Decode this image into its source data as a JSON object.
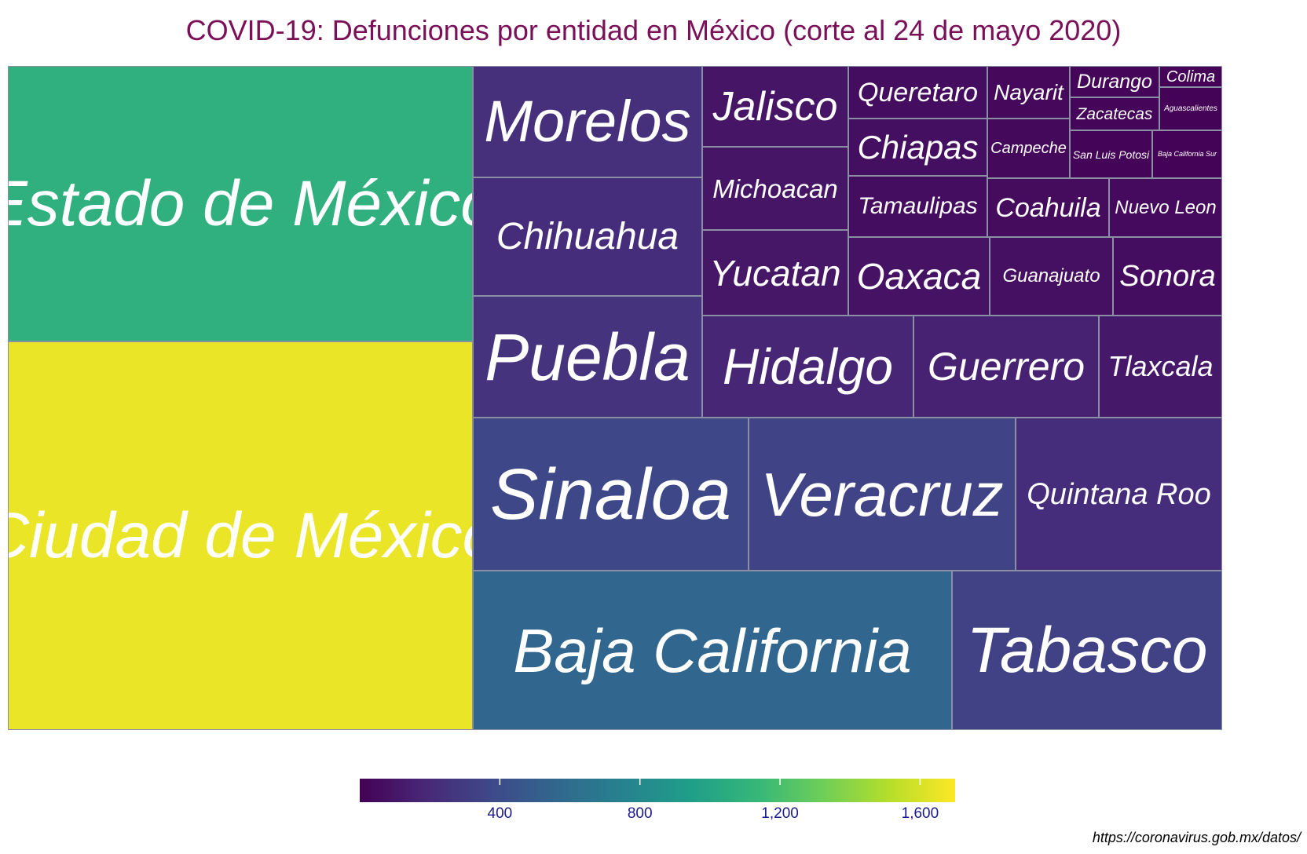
{
  "title": "COVID-19: Defunciones por entidad en México (corte al 24 de mayo 2020)",
  "source": "https://coronavirus.gob.mx/datos/",
  "colorscale": [
    "#440154",
    "#482878",
    "#3e4989",
    "#31688e",
    "#26828e",
    "#1f9e89",
    "#35b779",
    "#6ece58",
    "#b5de2b",
    "#fde725"
  ],
  "chart_data": {
    "type": "treemap",
    "title": "COVID-19: Defunciones por entidad en México (corte al 24 de mayo 2020)",
    "value_range": [
      0,
      1700
    ],
    "legend": {
      "ticks": [
        400,
        800,
        1200,
        1600
      ],
      "tick_labels": [
        "400",
        "800",
        "1,200",
        "1,600"
      ],
      "placement": "bottom"
    },
    "items": [
      {
        "name": "Ciudad de México",
        "value": 1650
      },
      {
        "name": "Estado de México",
        "value": 1080
      },
      {
        "name": "Baja California",
        "value": 560
      },
      {
        "name": "Tabasco",
        "value": 330
      },
      {
        "name": "Sinaloa",
        "value": 370
      },
      {
        "name": "Veracruz",
        "value": 345
      },
      {
        "name": "Quintana Roo",
        "value": 220
      },
      {
        "name": "Puebla",
        "value": 250
      },
      {
        "name": "Morelos",
        "value": 235
      },
      {
        "name": "Chihuahua",
        "value": 220
      },
      {
        "name": "Hidalgo",
        "value": 180
      },
      {
        "name": "Guerrero",
        "value": 160
      },
      {
        "name": "Tlaxcala",
        "value": 110
      },
      {
        "name": "Jalisco",
        "value": 95
      },
      {
        "name": "Michoacan",
        "value": 95
      },
      {
        "name": "Yucatan",
        "value": 100
      },
      {
        "name": "Oaxaca",
        "value": 85
      },
      {
        "name": "Guanajuato",
        "value": 75
      },
      {
        "name": "Sonora",
        "value": 60
      },
      {
        "name": "Queretaro",
        "value": 60
      },
      {
        "name": "Chiapas",
        "value": 70
      },
      {
        "name": "Tamaulipas",
        "value": 60
      },
      {
        "name": "Coahuila",
        "value": 55
      },
      {
        "name": "Nuevo Leon",
        "value": 45
      },
      {
        "name": "Nayarit",
        "value": 35
      },
      {
        "name": "Campeche",
        "value": 40
      },
      {
        "name": "Durango",
        "value": 25
      },
      {
        "name": "Zacatecas",
        "value": 25
      },
      {
        "name": "San Luis Potosi",
        "value": 20
      },
      {
        "name": "Colima",
        "value": 10
      },
      {
        "name": "Aguascalientes",
        "value": 12
      },
      {
        "name": "Baja California Sur",
        "value": 10
      }
    ]
  }
}
